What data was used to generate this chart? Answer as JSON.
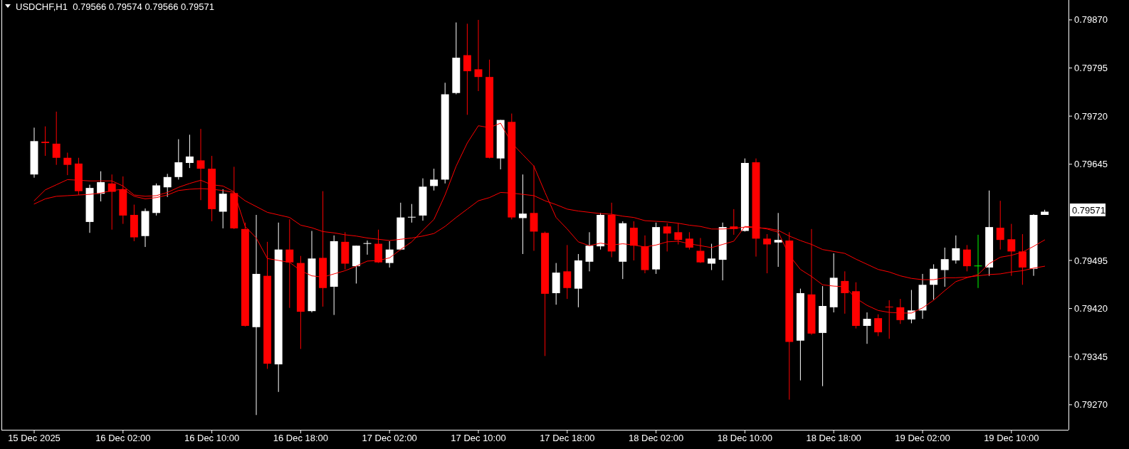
{
  "chart_data": {
    "type": "candlestick",
    "title": "USDCHF,H1  0.79566 0.79574 0.79566 0.79571",
    "categories": [
      "15 Dec 2025",
      null,
      null,
      null,
      null,
      null,
      null,
      null,
      "16 Dec 02:00",
      null,
      null,
      null,
      null,
      null,
      null,
      null,
      "16 Dec 10:00",
      null,
      null,
      null,
      null,
      null,
      null,
      null,
      "16 Dec 18:00",
      null,
      null,
      null,
      null,
      null,
      null,
      null,
      "17 Dec 02:00",
      null,
      null,
      null,
      null,
      null,
      null,
      null,
      "17 Dec 10:00",
      null,
      null,
      null,
      null,
      null,
      null,
      null,
      "17 Dec 18:00",
      null,
      null,
      null,
      null,
      null,
      null,
      null,
      "18 Dec 02:00",
      null,
      null,
      null,
      null,
      null,
      null,
      null,
      "18 Dec 10:00",
      null,
      null,
      null,
      null,
      null,
      null,
      null,
      "18 Dec 18:00",
      null,
      null,
      null,
      null,
      null,
      null,
      null,
      "19 Dec 02:00",
      null,
      null,
      null,
      null,
      null,
      null,
      null,
      "19 Dec 10:00",
      null,
      null,
      null
    ],
    "ohlc": [
      [
        0.79629,
        0.79702,
        0.79624,
        0.79681
      ],
      [
        0.7968,
        0.79704,
        0.79658,
        0.79678
      ],
      [
        0.79677,
        0.79727,
        0.79644,
        0.79655
      ],
      [
        0.79655,
        0.79663,
        0.79628,
        0.79644
      ],
      [
        0.79646,
        0.79655,
        0.79597,
        0.79603
      ],
      [
        0.79555,
        0.79613,
        0.79538,
        0.79608
      ],
      [
        0.79599,
        0.79634,
        0.79587,
        0.79617
      ],
      [
        0.79615,
        0.79629,
        0.79543,
        0.79602
      ],
      [
        0.79606,
        0.79626,
        0.79552,
        0.79565
      ],
      [
        0.79566,
        0.79582,
        0.79525,
        0.79531
      ],
      [
        0.79533,
        0.79576,
        0.79516,
        0.79572
      ],
      [
        0.79569,
        0.79615,
        0.79565,
        0.79612
      ],
      [
        0.79609,
        0.7963,
        0.79594,
        0.79625
      ],
      [
        0.79625,
        0.79684,
        0.79621,
        0.79648
      ],
      [
        0.79647,
        0.79691,
        0.79639,
        0.79657
      ],
      [
        0.79651,
        0.797,
        0.79589,
        0.79638
      ],
      [
        0.79638,
        0.79658,
        0.79556,
        0.79575
      ],
      [
        0.79571,
        0.79606,
        0.79545,
        0.79599
      ],
      [
        0.796,
        0.79641,
        0.79544,
        0.79545
      ],
      [
        0.79544,
        0.79554,
        0.79392,
        0.79393
      ],
      [
        0.79391,
        0.79566,
        0.79254,
        0.79474
      ],
      [
        0.79471,
        0.79524,
        0.79326,
        0.79334
      ],
      [
        0.79333,
        0.79554,
        0.7929,
        0.79512
      ],
      [
        0.79512,
        0.79559,
        0.79421,
        0.79492
      ],
      [
        0.79491,
        0.79502,
        0.79357,
        0.79415
      ],
      [
        0.79416,
        0.79541,
        0.79414,
        0.79498
      ],
      [
        0.79499,
        0.79603,
        0.79423,
        0.79452
      ],
      [
        0.79454,
        0.79534,
        0.7941,
        0.79525
      ],
      [
        0.79524,
        0.79539,
        0.79481,
        0.7949
      ],
      [
        0.79486,
        0.79518,
        0.79459,
        0.79518
      ],
      [
        0.79521,
        0.79526,
        0.79504,
        0.79522
      ],
      [
        0.79521,
        0.79543,
        0.79491,
        0.79492
      ],
      [
        0.79491,
        0.79525,
        0.79484,
        0.79512
      ],
      [
        0.79512,
        0.79585,
        0.79511,
        0.79562
      ],
      [
        0.79562,
        0.79583,
        0.79554,
        0.79563
      ],
      [
        0.79565,
        0.79623,
        0.79557,
        0.7961
      ],
      [
        0.79611,
        0.79638,
        0.79604,
        0.79621
      ],
      [
        0.79621,
        0.79772,
        0.79615,
        0.79754
      ],
      [
        0.79756,
        0.79866,
        0.79754,
        0.79811
      ],
      [
        0.79815,
        0.79864,
        0.79722,
        0.7979
      ],
      [
        0.79793,
        0.7987,
        0.79759,
        0.79781
      ],
      [
        0.79781,
        0.79808,
        0.79654,
        0.79655
      ],
      [
        0.79654,
        0.79714,
        0.79637,
        0.79714
      ],
      [
        0.79711,
        0.79724,
        0.79559,
        0.79562
      ],
      [
        0.79561,
        0.79629,
        0.79505,
        0.79568
      ],
      [
        0.79569,
        0.79643,
        0.7951,
        0.7954
      ],
      [
        0.79538,
        0.7954,
        0.79346,
        0.79443
      ],
      [
        0.79444,
        0.79491,
        0.79426,
        0.79476
      ],
      [
        0.79478,
        0.79519,
        0.79435,
        0.79452
      ],
      [
        0.79451,
        0.79505,
        0.79422,
        0.79495
      ],
      [
        0.79493,
        0.79539,
        0.79478,
        0.79518
      ],
      [
        0.79517,
        0.79569,
        0.79512,
        0.79566
      ],
      [
        0.79566,
        0.79585,
        0.795,
        0.79509
      ],
      [
        0.79493,
        0.79556,
        0.79466,
        0.79553
      ],
      [
        0.79546,
        0.79556,
        0.79495,
        0.79518
      ],
      [
        0.79517,
        0.79534,
        0.79475,
        0.7948
      ],
      [
        0.79481,
        0.79554,
        0.79474,
        0.79547
      ],
      [
        0.79548,
        0.79553,
        0.79509,
        0.79537
      ],
      [
        0.79539,
        0.79553,
        0.7952,
        0.79527
      ],
      [
        0.79529,
        0.79539,
        0.79512,
        0.79515
      ],
      [
        0.7951,
        0.7953,
        0.79491,
        0.79492
      ],
      [
        0.7949,
        0.79521,
        0.7948,
        0.79498
      ],
      [
        0.79496,
        0.79554,
        0.79464,
        0.79547
      ],
      [
        0.79548,
        0.79575,
        0.79535,
        0.79544
      ],
      [
        0.79541,
        0.79654,
        0.7954,
        0.79647
      ],
      [
        0.79648,
        0.79654,
        0.79501,
        0.79529
      ],
      [
        0.79529,
        0.79536,
        0.79475,
        0.7952
      ],
      [
        0.79523,
        0.79569,
        0.79485,
        0.79527
      ],
      [
        0.79526,
        0.79539,
        0.79278,
        0.79368
      ],
      [
        0.7937,
        0.79451,
        0.79308,
        0.79444
      ],
      [
        0.79442,
        0.79544,
        0.79379,
        0.79381
      ],
      [
        0.79382,
        0.79455,
        0.79299,
        0.79424
      ],
      [
        0.79422,
        0.79506,
        0.79414,
        0.79468
      ],
      [
        0.79463,
        0.79478,
        0.79412,
        0.79444
      ],
      [
        0.79447,
        0.79461,
        0.79389,
        0.79393
      ],
      [
        0.79393,
        0.79414,
        0.79365,
        0.79404
      ],
      [
        0.79405,
        0.79411,
        0.79377,
        0.79383
      ],
      [
        0.79423,
        0.79433,
        0.79373,
        0.79422
      ],
      [
        0.79422,
        0.79435,
        0.79396,
        0.79402
      ],
      [
        0.79403,
        0.79449,
        0.79397,
        0.79417
      ],
      [
        0.79417,
        0.79474,
        0.79404,
        0.79457
      ],
      [
        0.79457,
        0.79489,
        0.79434,
        0.79482
      ],
      [
        0.7948,
        0.79515,
        0.79454,
        0.79497
      ],
      [
        0.79495,
        0.79534,
        0.7949,
        0.79514
      ],
      [
        0.79512,
        0.79519,
        0.79478,
        0.79486
      ],
      [
        0.79487,
        0.79535,
        0.79452,
        0.79487
      ],
      [
        0.79484,
        0.79604,
        0.79471,
        0.79547
      ],
      [
        0.79546,
        0.79588,
        0.79512,
        0.79527
      ],
      [
        0.79528,
        0.79552,
        0.79471,
        0.79509
      ],
      [
        0.79509,
        0.79536,
        0.79457,
        0.79484
      ],
      [
        0.79482,
        0.79567,
        0.79471,
        0.79566
      ],
      [
        0.79566,
        0.79574,
        0.79566,
        0.79571
      ]
    ],
    "colors": [
      "#ffffff",
      "#ff0000",
      "#ff0000",
      "#ff0000",
      "#ff0000",
      "#ffffff",
      "#ffffff",
      "#ff0000",
      "#ff0000",
      "#ff0000",
      "#ffffff",
      "#ffffff",
      "#ffffff",
      "#ffffff",
      "#ffffff",
      "#ff0000",
      "#ff0000",
      "#ffffff",
      "#ff0000",
      "#ff0000",
      "#ffffff",
      "#ff0000",
      "#ffffff",
      "#ff0000",
      "#ff0000",
      "#ffffff",
      "#ff0000",
      "#ffffff",
      "#ff0000",
      "#ffffff",
      "#ffffff",
      "#ff0000",
      "#ffffff",
      "#ffffff",
      "#ffffff",
      "#ffffff",
      "#ffffff",
      "#ffffff",
      "#ffffff",
      "#ff0000",
      "#ff0000",
      "#ff0000",
      "#ffffff",
      "#ff0000",
      "#ffffff",
      "#ff0000",
      "#ff0000",
      "#ffffff",
      "#ff0000",
      "#ffffff",
      "#ffffff",
      "#ffffff",
      "#ff0000",
      "#ffffff",
      "#ff0000",
      "#ff0000",
      "#ffffff",
      "#ff0000",
      "#ff0000",
      "#ff0000",
      "#ff0000",
      "#ffffff",
      "#ffffff",
      "#ff0000",
      "#ffffff",
      "#ff0000",
      "#ff0000",
      "#ffffff",
      "#ff0000",
      "#ffffff",
      "#ff0000",
      "#ffffff",
      "#ffffff",
      "#ff0000",
      "#ff0000",
      "#ffffff",
      "#ff0000",
      "#ff0000",
      "#ff0000",
      "#ffffff",
      "#ffffff",
      "#ffffff",
      "#ffffff",
      "#ffffff",
      "#ff0000",
      "#00ff00",
      "#ffffff",
      "#ff0000",
      "#ff0000",
      "#ff0000",
      "#ffffff",
      "#ffffff"
    ],
    "series": [
      {
        "type": "line",
        "color": "#ff0000",
        "values": [
          0.79588,
          0.79605,
          0.79613,
          0.79621,
          0.7962,
          0.79619,
          0.79619,
          0.79619,
          0.79611,
          0.79597,
          0.79595,
          0.79596,
          0.79601,
          0.79609,
          0.79615,
          0.7962,
          0.79613,
          0.79611,
          0.79602,
          0.79548,
          0.7953,
          0.79498,
          0.79495,
          0.79492,
          0.79479,
          0.79471,
          0.79469,
          0.79474,
          0.79479,
          0.79486,
          0.79494,
          0.79495,
          0.79499,
          0.79512,
          0.79524,
          0.79542,
          0.79559,
          0.79597,
          0.79642,
          0.79678,
          0.79705,
          0.79702,
          0.79709,
          0.79678,
          0.7966,
          0.79642,
          0.79601,
          0.79562,
          0.79544,
          0.79524,
          0.79518,
          0.79522,
          0.79519,
          0.79521,
          0.79519,
          0.79516,
          0.79519,
          0.79524,
          0.79525,
          0.79521,
          0.79518,
          0.79515,
          0.7952,
          0.79525,
          0.79548,
          0.79547,
          0.79544,
          0.79539,
          0.79503,
          0.79481,
          0.7947,
          0.79457,
          0.79455,
          0.79454,
          0.79436,
          0.79425,
          0.79417,
          0.79414,
          0.79413,
          0.79413,
          0.79421,
          0.79433,
          0.79448,
          0.79462,
          0.79468,
          0.79473,
          0.7949,
          0.795,
          0.79503,
          0.79508,
          0.79517,
          0.79527
        ]
      },
      {
        "type": "line",
        "color": "#ff0000",
        "values": [
          0.79583,
          0.79591,
          0.79595,
          0.79596,
          0.79597,
          0.79598,
          0.796,
          0.79604,
          0.79606,
          0.79595,
          0.79591,
          0.79593,
          0.79597,
          0.79604,
          0.79606,
          0.79607,
          0.79606,
          0.79604,
          0.79601,
          0.79588,
          0.79579,
          0.7957,
          0.79566,
          0.79562,
          0.7955,
          0.79546,
          0.7954,
          0.79538,
          0.79535,
          0.79533,
          0.7953,
          0.79528,
          0.79526,
          0.79528,
          0.7953,
          0.79533,
          0.79537,
          0.79548,
          0.79562,
          0.79575,
          0.79588,
          0.79593,
          0.79601,
          0.796,
          0.79598,
          0.79596,
          0.79588,
          0.79582,
          0.79575,
          0.79572,
          0.7957,
          0.79568,
          0.79567,
          0.79564,
          0.79562,
          0.79557,
          0.79556,
          0.79555,
          0.79553,
          0.7955,
          0.79548,
          0.79544,
          0.79544,
          0.79545,
          0.79547,
          0.79546,
          0.79545,
          0.79542,
          0.79533,
          0.79526,
          0.7952,
          0.79512,
          0.79509,
          0.79506,
          0.79497,
          0.79489,
          0.79481,
          0.79477,
          0.79471,
          0.79467,
          0.79465,
          0.79465,
          0.79468,
          0.79468,
          0.79469,
          0.79471,
          0.79473,
          0.79474,
          0.79477,
          0.79479,
          0.79483,
          0.79486
        ]
      }
    ],
    "ylim": [
      0.79231,
      0.79901
    ],
    "yticks": [
      {
        "value": 0.7927,
        "label": "0.79270"
      },
      {
        "value": 0.79345,
        "label": "0.79345"
      },
      {
        "value": 0.7942,
        "label": "0.79420"
      },
      {
        "value": 0.79495,
        "label": "0.79495"
      },
      {
        "value": 0.79645,
        "label": "0.79645"
      },
      {
        "value": 0.7972,
        "label": "0.79720"
      },
      {
        "value": 0.79795,
        "label": "0.79795"
      },
      {
        "value": 0.7987,
        "label": "0.79870"
      }
    ],
    "annotations": [
      "0.79571"
    ]
  }
}
